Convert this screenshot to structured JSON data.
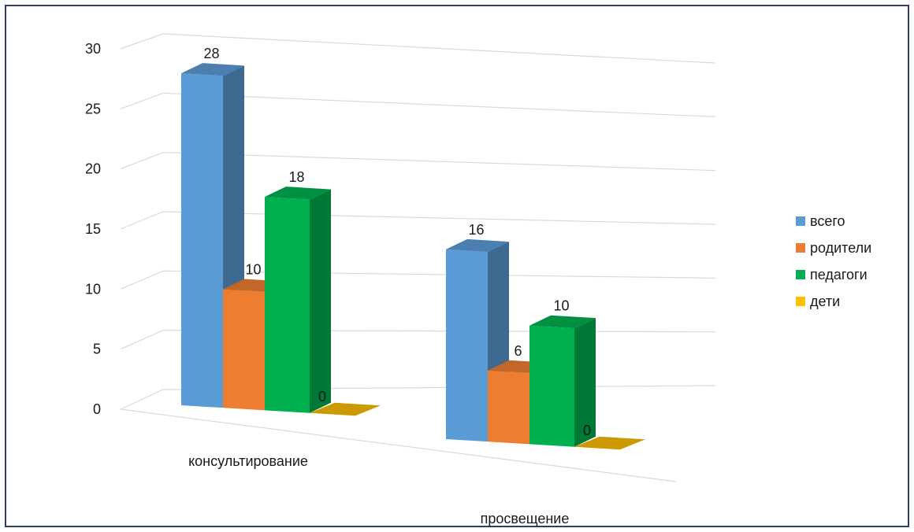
{
  "chart_data": {
    "type": "bar",
    "categories": [
      "консультирование",
      "просвещение"
    ],
    "series": [
      {
        "name": "всего",
        "values": [
          28,
          16
        ],
        "color": "#5b9bd5"
      },
      {
        "name": "родители",
        "values": [
          10,
          6
        ],
        "color": "#ed7d31"
      },
      {
        "name": "педагоги",
        "values": [
          18,
          10
        ],
        "color": "#00b050"
      },
      {
        "name": "дети",
        "values": [
          0,
          0
        ],
        "color": "#ffc000"
      }
    ],
    "ylim": [
      0,
      30
    ],
    "yticks": [
      "0",
      "5",
      "10",
      "15",
      "20",
      "25",
      "30"
    ],
    "grid": true,
    "legend_position": "right",
    "style": "3d clustered columns"
  }
}
